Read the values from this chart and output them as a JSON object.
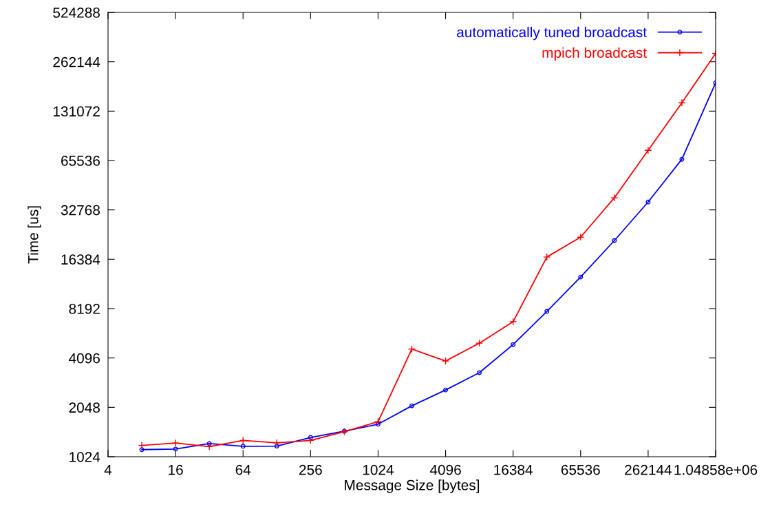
{
  "chart_data": {
    "type": "line",
    "xlabel": "Message Size [bytes]",
    "ylabel": "Time [us]",
    "log": "xy",
    "grid": false,
    "legend": "top right",
    "x": [
      8,
      16,
      32,
      64,
      128,
      256,
      512,
      1024,
      2048,
      4096,
      8192,
      16384,
      32768,
      65536,
      131072,
      262144,
      524288,
      1048576
    ],
    "xlim": [
      4,
      1048576
    ],
    "xticks": [
      4,
      16,
      64,
      256,
      1024,
      4096,
      16384,
      65536,
      262144,
      {
        "value": 1048576,
        "label": "1.04858e+06"
      }
    ],
    "ylim": [
      1024,
      524288
    ],
    "yticks": [
      1024,
      2048,
      4096,
      8192,
      16384,
      32768,
      65536,
      131072,
      262144,
      524288
    ],
    "series": [
      {
        "name": "automatically tuned broadcast",
        "color": "#0000ff",
        "marker": "circle",
        "values": [
          1131,
          1140,
          1231,
          1186,
          1188,
          1342,
          1465,
          1616,
          2092,
          2613,
          3334,
          4945,
          7877,
          12770,
          21290,
          36600,
          66700,
          195000
        ]
      },
      {
        "name": "mpich broadcast",
        "color": "#ff0000",
        "marker": "cross",
        "values": [
          1200,
          1241,
          1179,
          1287,
          1245,
          1287,
          1455,
          1674,
          4643,
          3923,
          5043,
          6813,
          16900,
          22350,
          38800,
          75600,
          147400,
          295000
        ]
      }
    ]
  }
}
